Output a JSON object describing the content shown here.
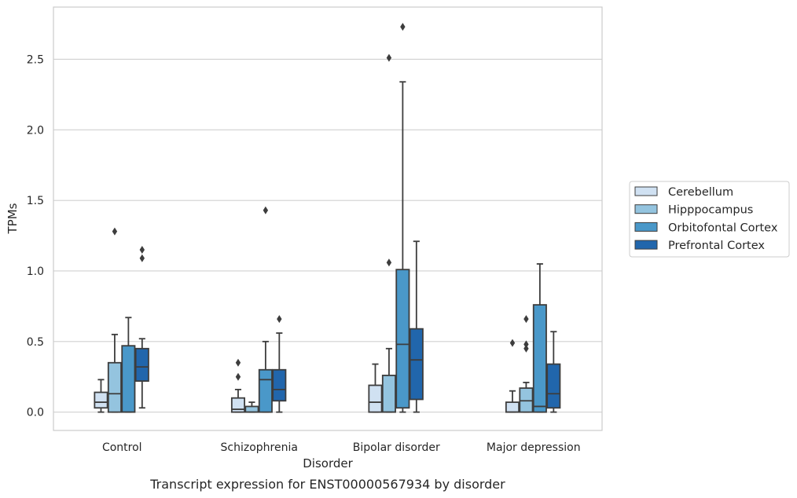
{
  "chart_data": {
    "type": "box",
    "caption": "Transcript expression for ENST00000567934 by disorder",
    "xlabel": "Disorder",
    "ylabel": "TPMs",
    "ylim": [
      -0.13,
      2.87
    ],
    "yticks": [
      "0.0",
      "0.5",
      "1.0",
      "1.5",
      "2.0",
      "2.5"
    ],
    "grid": "horizontal",
    "legend_position": "right",
    "categories": [
      "Control",
      "Schizophrenia",
      "Bipolar disorder",
      "Major depression"
    ],
    "series": [
      {
        "name": "Cerebellum",
        "color": "#d0e1f2",
        "boxes": [
          {
            "whislo": 0.0,
            "q1": 0.03,
            "med": 0.07,
            "q3": 0.14,
            "whishi": 0.23,
            "fliers": []
          },
          {
            "whislo": 0.0,
            "q1": 0.0,
            "med": 0.02,
            "q3": 0.1,
            "whishi": 0.16,
            "fliers": [
              0.35,
              0.25
            ]
          },
          {
            "whislo": 0.0,
            "q1": 0.0,
            "med": 0.07,
            "q3": 0.19,
            "whishi": 0.34,
            "fliers": []
          },
          {
            "whislo": 0.0,
            "q1": 0.0,
            "med": 0.0,
            "q3": 0.07,
            "whishi": 0.15,
            "fliers": [
              0.49
            ]
          }
        ]
      },
      {
        "name": "Hipppocampus",
        "color": "#94c4df",
        "boxes": [
          {
            "whislo": 0.0,
            "q1": 0.0,
            "med": 0.13,
            "q3": 0.35,
            "whishi": 0.55,
            "fliers": [
              1.28
            ]
          },
          {
            "whislo": 0.0,
            "q1": 0.0,
            "med": 0.0,
            "q3": 0.04,
            "whishi": 0.07,
            "fliers": []
          },
          {
            "whislo": 0.0,
            "q1": 0.0,
            "med": 0.0,
            "q3": 0.26,
            "whishi": 0.45,
            "fliers": [
              1.06,
              2.51
            ]
          },
          {
            "whislo": 0.0,
            "q1": 0.0,
            "med": 0.08,
            "q3": 0.17,
            "whishi": 0.21,
            "fliers": [
              0.66,
              0.48,
              0.45
            ]
          }
        ]
      },
      {
        "name": "Orbitofontal Cortex",
        "color": "#4a98c9",
        "boxes": [
          {
            "whislo": 0.0,
            "q1": 0.0,
            "med": 0.0,
            "q3": 0.47,
            "whishi": 0.67,
            "fliers": []
          },
          {
            "whislo": 0.0,
            "q1": 0.0,
            "med": 0.23,
            "q3": 0.3,
            "whishi": 0.5,
            "fliers": [
              1.43
            ]
          },
          {
            "whislo": 0.0,
            "q1": 0.03,
            "med": 0.48,
            "q3": 1.01,
            "whishi": 2.34,
            "fliers": [
              2.73
            ]
          },
          {
            "whislo": 0.0,
            "q1": 0.0,
            "med": 0.04,
            "q3": 0.76,
            "whishi": 1.05,
            "fliers": []
          }
        ]
      },
      {
        "name": "Prefrontal Cortex",
        "color": "#2166ac",
        "boxes": [
          {
            "whislo": 0.03,
            "q1": 0.22,
            "med": 0.32,
            "q3": 0.45,
            "whishi": 0.52,
            "fliers": [
              1.15,
              1.09
            ]
          },
          {
            "whislo": 0.0,
            "q1": 0.08,
            "med": 0.16,
            "q3": 0.3,
            "whishi": 0.56,
            "fliers": [
              0.66
            ]
          },
          {
            "whislo": 0.0,
            "q1": 0.09,
            "med": 0.37,
            "q3": 0.59,
            "whishi": 1.21,
            "fliers": []
          },
          {
            "whislo": 0.0,
            "q1": 0.03,
            "med": 0.13,
            "q3": 0.34,
            "whishi": 0.57,
            "fliers": []
          }
        ]
      }
    ]
  }
}
